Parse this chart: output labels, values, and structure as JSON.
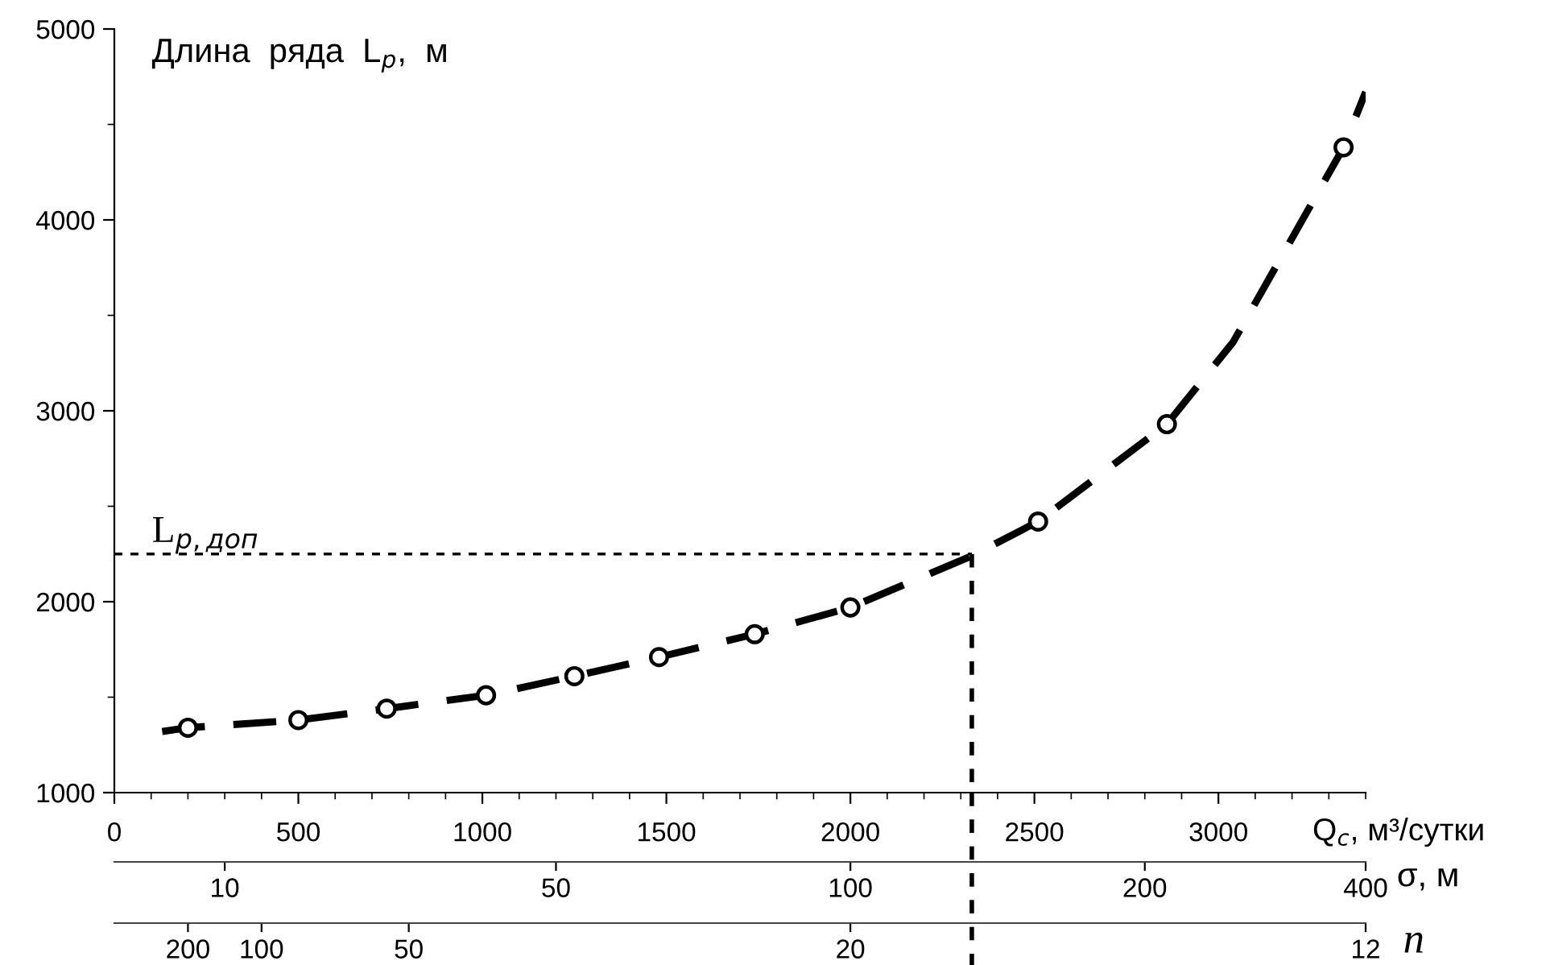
{
  "chart_data": [
    {
      "type": "line",
      "ylabel": "Длина  ряда  L$_{р}$,  м",
      "xlabel": "Q$_{с}$, м³/сутки",
      "xlim": [
        0,
        3400
      ],
      "ylim": [
        1000,
        5000
      ],
      "xticks": [
        0,
        500,
        1000,
        1500,
        2000,
        2500,
        3000,
        {
          "value": 100,
          "label": null
        },
        {
          "value": 200,
          "label": null
        },
        {
          "value": 300,
          "label": null
        },
        {
          "value": 400,
          "label": null
        },
        {
          "value": 600,
          "label": null
        },
        {
          "value": 700,
          "label": null
        },
        {
          "value": 800,
          "label": null
        },
        {
          "value": 900,
          "label": null
        },
        {
          "value": 1100,
          "label": null
        },
        {
          "value": 1200,
          "label": null
        },
        {
          "value": 1300,
          "label": null
        },
        {
          "value": 1400,
          "label": null
        },
        {
          "value": 1600,
          "label": null
        },
        {
          "value": 1700,
          "label": null
        },
        {
          "value": 1800,
          "label": null
        },
        {
          "value": 1900,
          "label": null
        },
        {
          "value": 2100,
          "label": null
        },
        {
          "value": 2200,
          "label": null
        },
        {
          "value": 2300,
          "label": null
        },
        {
          "value": 2400,
          "label": null
        },
        {
          "value": 2600,
          "label": null
        },
        {
          "value": 2700,
          "label": null
        },
        {
          "value": 2800,
          "label": null
        },
        {
          "value": 2900,
          "label": null
        },
        {
          "value": 3100,
          "label": null
        },
        {
          "value": 3200,
          "label": null
        },
        {
          "value": 3300,
          "label": null
        },
        {
          "value": 3400,
          "label": null
        }
      ],
      "yticks": [
        1000,
        2000,
        3000,
        4000,
        5000,
        {
          "value": 1500,
          "label": null
        },
        {
          "value": 2500,
          "label": null
        },
        {
          "value": 3500,
          "label": null
        },
        {
          "value": 4500,
          "label": null
        }
      ],
      "ref_lines": [
        {
          "axis": "y",
          "value": 2250,
          "label": "L$_{р,доп}$",
          "color": "#000000",
          "line_style": "dashed"
        },
        {
          "axis": "x",
          "value": 2330,
          "label": null,
          "color": "#000000",
          "line_style": "dashed"
        }
      ],
      "series": [
        {
          "color": "#000000",
          "line_style": "dashed",
          "x": [
            130,
            200,
            500,
            740,
            1010,
            1250,
            1480,
            1740,
            2000,
            2330,
            2510,
            2860,
            3040,
            3340,
            3400
          ],
          "values": [
            1320,
            1340,
            1380,
            1440,
            1510,
            1610,
            1710,
            1830,
            1970,
            2240,
            2420,
            2930,
            3360,
            4380,
            4670
          ]
        },
        {
          "type": "scatter",
          "color": "#000000",
          "marker": "circle",
          "x": [
            200,
            500,
            740,
            1010,
            1250,
            1480,
            1740,
            2000,
            2510,
            2860,
            3340
          ],
          "values": [
            1340,
            1380,
            1440,
            1510,
            1610,
            1710,
            1830,
            1970,
            2420,
            2930,
            4380
          ]
        }
      ]
    },
    {
      "type": "other",
      "xlabel": "σ, м",
      "categories": [
        null,
        null,
        null,
        "10",
        null,
        null,
        null,
        null,
        null,
        null,
        null,
        null,
        "50",
        null,
        null,
        null,
        null,
        null,
        null,
        null,
        "100",
        null,
        null,
        null,
        null,
        null,
        null,
        null,
        "200",
        null,
        null,
        null,
        null,
        null,
        "400"
      ]
    },
    {
      "type": "other",
      "xlabel": "n",
      "categories": [
        null,
        null,
        "200",
        null,
        "100",
        null,
        null,
        null,
        "50",
        null,
        null,
        null,
        null,
        null,
        null,
        null,
        null,
        null,
        null,
        null,
        "20",
        null,
        null,
        null,
        null,
        null,
        null,
        null,
        null,
        null,
        null,
        null,
        null,
        null,
        "12"
      ]
    }
  ]
}
